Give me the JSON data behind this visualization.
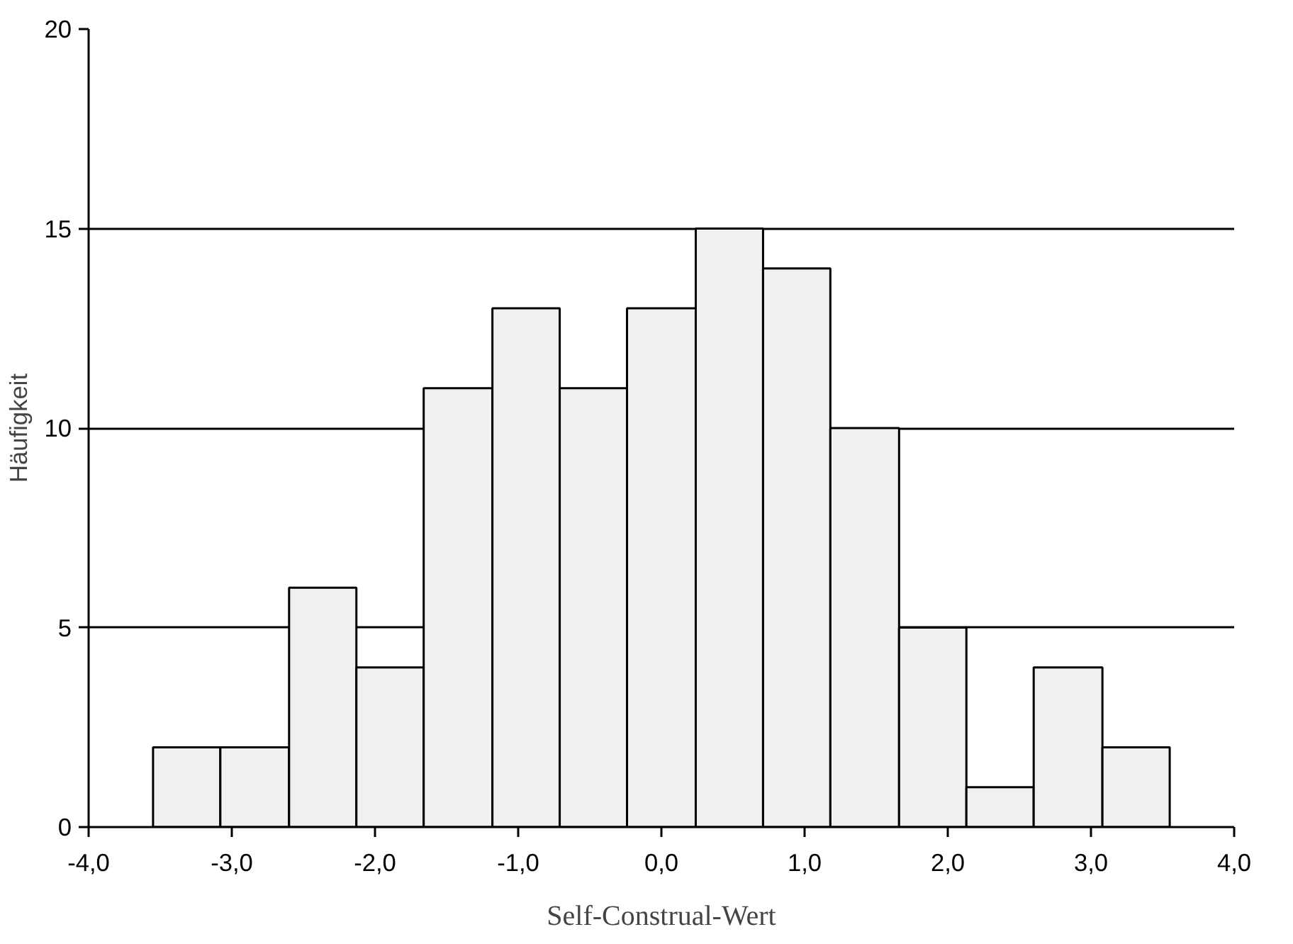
{
  "chart_data": {
    "type": "histogram",
    "xlabel": "Self-Construal-Wert",
    "ylabel": "Häufigkeit",
    "bins": [
      -3.55,
      -3.08,
      -2.6,
      -2.13,
      -1.66,
      -1.18,
      -0.71,
      -0.24,
      0.24,
      0.71,
      1.18,
      1.66,
      2.13,
      2.6,
      3.08,
      3.55
    ],
    "values": [
      2,
      2,
      6,
      4,
      11,
      13,
      11,
      13,
      15,
      14,
      10,
      5,
      1,
      4,
      2
    ],
    "color": "#f0f0f0",
    "xlim": [
      -4,
      4
    ],
    "xticks": [
      {
        "value": -4,
        "label": "-4,0"
      },
      {
        "value": -3,
        "label": "-3,0"
      },
      {
        "value": -2,
        "label": "-2,0"
      },
      {
        "value": -1,
        "label": "-1,0"
      },
      {
        "value": 0,
        "label": "0,0"
      },
      {
        "value": 1,
        "label": "1,0"
      },
      {
        "value": 2,
        "label": "2,0"
      },
      {
        "value": 3,
        "label": "3,0"
      },
      {
        "value": 4,
        "label": "4,0"
      }
    ],
    "ylim": [
      0,
      20
    ],
    "yticks": [
      0,
      5,
      10,
      15,
      20
    ],
    "grid": "y"
  }
}
